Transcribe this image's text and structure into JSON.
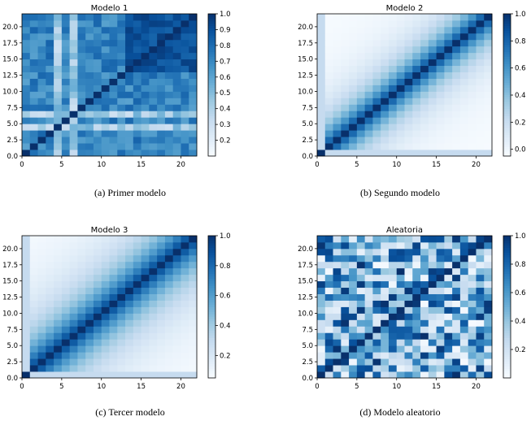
{
  "figure": {
    "captions": [
      "(a)  Primer modelo",
      "(b)  Segundo modelo",
      "(c)  Tercer modelo",
      "(d)  Modelo aleatorio"
    ]
  },
  "colormap": "Blues",
  "chart_data": [
    {
      "type": "heatmap",
      "title": "Modelo 1",
      "grid_size": 22,
      "pattern": "noisy-structured",
      "x_ticks": [
        0,
        5,
        10,
        15,
        20
      ],
      "x_tick_labels": [
        "0",
        "5",
        "10",
        "15",
        "20"
      ],
      "y_ticks": [
        0.0,
        2.5,
        5.0,
        7.5,
        10.0,
        12.5,
        15.0,
        17.5,
        20.0
      ],
      "y_tick_labels": [
        "0.0",
        "2.5",
        "5.0",
        "7.5",
        "10.0",
        "12.5",
        "15.0",
        "17.5",
        "20.0"
      ],
      "xlim": [
        0,
        22
      ],
      "ylim": [
        0,
        22
      ],
      "colorbar": {
        "range": [
          0.1,
          1.0
        ],
        "ticks": [
          0.2,
          0.3,
          0.4,
          0.5,
          0.6,
          0.7,
          0.8,
          0.9,
          1.0
        ],
        "tick_labels": [
          "0.2",
          "0.3",
          "0.4",
          "0.5",
          "0.6",
          "0.7",
          "0.8",
          "0.9",
          "1.0"
        ]
      }
    },
    {
      "type": "heatmap",
      "title": "Modelo 2",
      "grid_size": 22,
      "pattern": "diagonal-decay",
      "decay": 4.0,
      "x_ticks": [
        0,
        5,
        10,
        15,
        20
      ],
      "x_tick_labels": [
        "0",
        "5",
        "10",
        "15",
        "20"
      ],
      "y_ticks": [
        0.0,
        2.5,
        5.0,
        7.5,
        10.0,
        12.5,
        15.0,
        17.5,
        20.0
      ],
      "y_tick_labels": [
        "0.0",
        "2.5",
        "5.0",
        "7.5",
        "10.0",
        "12.5",
        "15.0",
        "17.5",
        "20.0"
      ],
      "xlim": [
        0,
        22
      ],
      "ylim": [
        0,
        22
      ],
      "colorbar": {
        "range": [
          -0.05,
          1.0
        ],
        "ticks": [
          0.0,
          0.2,
          0.4,
          0.6,
          0.8,
          1.0
        ],
        "tick_labels": [
          "0.0",
          "0.2",
          "0.4",
          "0.6",
          "0.8",
          "1.0"
        ]
      }
    },
    {
      "type": "heatmap",
      "title": "Modelo 3",
      "grid_size": 22,
      "pattern": "diagonal-decay",
      "decay": 5.5,
      "x_ticks": [
        0,
        5,
        10,
        15,
        20
      ],
      "x_tick_labels": [
        "0",
        "5",
        "10",
        "15",
        "20"
      ],
      "y_ticks": [
        0.0,
        2.5,
        5.0,
        7.5,
        10.0,
        12.5,
        15.0,
        17.5,
        20.0
      ],
      "y_tick_labels": [
        "0.0",
        "2.5",
        "5.0",
        "7.5",
        "10.0",
        "12.5",
        "15.0",
        "17.5",
        "20.0"
      ],
      "xlim": [
        0,
        22
      ],
      "ylim": [
        0,
        22
      ],
      "colorbar": {
        "range": [
          0.05,
          1.0
        ],
        "ticks": [
          0.2,
          0.4,
          0.6,
          0.8,
          1.0
        ],
        "tick_labels": [
          "0.2",
          "0.4",
          "0.6",
          "0.8",
          "1.0"
        ]
      }
    },
    {
      "type": "heatmap",
      "title": "Aleatoria",
      "grid_size": 22,
      "pattern": "random",
      "x_ticks": [
        0,
        5,
        10,
        15,
        20
      ],
      "x_tick_labels": [
        "0",
        "5",
        "10",
        "15",
        "20"
      ],
      "y_ticks": [
        0.0,
        2.5,
        5.0,
        7.5,
        10.0,
        12.5,
        15.0,
        17.5,
        20.0
      ],
      "y_tick_labels": [
        "0.0",
        "2.5",
        "5.0",
        "7.5",
        "10.0",
        "12.5",
        "15.0",
        "17.5",
        "20.0"
      ],
      "xlim": [
        0,
        22
      ],
      "ylim": [
        0,
        22
      ],
      "colorbar": {
        "range": [
          0.0,
          1.0
        ],
        "ticks": [
          0.2,
          0.4,
          0.6,
          0.8,
          1.0
        ],
        "tick_labels": [
          "0.2",
          "0.4",
          "0.6",
          "0.8",
          "1.0"
        ]
      }
    }
  ]
}
